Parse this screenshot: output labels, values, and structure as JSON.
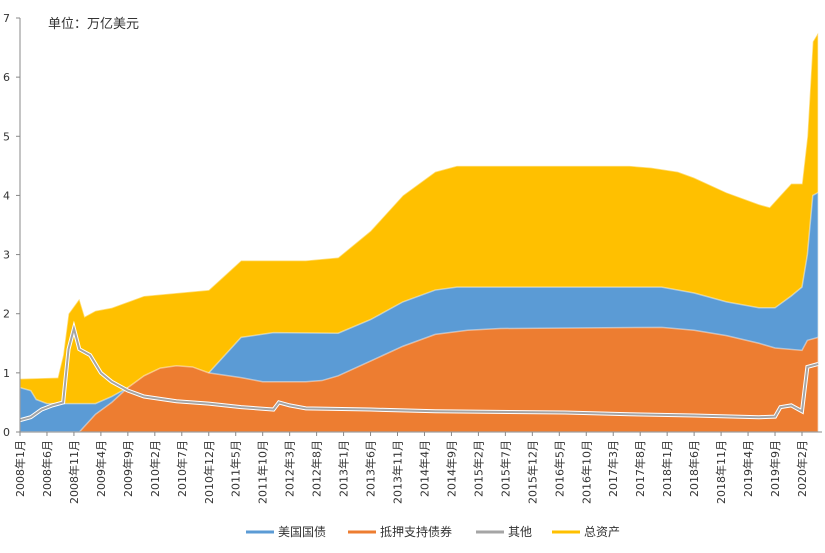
{
  "chart_data": {
    "type": "area",
    "title": "",
    "annotation": "单位：万亿美元",
    "ylim": [
      0,
      7
    ],
    "yticks": [
      0,
      1,
      2,
      3,
      4,
      5,
      6,
      7
    ],
    "xticks": [
      "2008年1月",
      "2008年6月",
      "2008年11月",
      "2009年4月",
      "2009年9月",
      "2010年2月",
      "2010年7月",
      "2010年12月",
      "2011年5月",
      "2011年10月",
      "2012年3月",
      "2012年8月",
      "2013年1月",
      "2013年6月",
      "2013年11月",
      "2014年4月",
      "2014年9月",
      "2015年2月",
      "2015年7月",
      "2015年12月",
      "2016年5月",
      "2016年10月",
      "2017年3月",
      "2017年8月",
      "2018年1月",
      "2018年6月",
      "2018年11月",
      "2019年4月",
      "2019年9月",
      "2020年2月"
    ],
    "grid": false,
    "legend_position": "bottom",
    "series": [
      {
        "name": "总资产",
        "color": "#ffc000",
        "kind": "area",
        "points": [
          [
            "2008-01",
            0.9
          ],
          [
            "2008-08",
            0.92
          ],
          [
            "2008-09",
            1.3
          ],
          [
            "2008-10",
            2.0
          ],
          [
            "2008-12",
            2.25
          ],
          [
            "2009-01",
            1.95
          ],
          [
            "2009-03",
            2.05
          ],
          [
            "2009-06",
            2.1
          ],
          [
            "2009-09",
            2.2
          ],
          [
            "2009-12",
            2.3
          ],
          [
            "2010-06",
            2.35
          ],
          [
            "2010-12",
            2.4
          ],
          [
            "2011-03",
            2.65
          ],
          [
            "2011-06",
            2.9
          ],
          [
            "2011-12",
            2.9
          ],
          [
            "2012-06",
            2.9
          ],
          [
            "2012-12",
            2.95
          ],
          [
            "2013-06",
            3.4
          ],
          [
            "2013-12",
            4.0
          ],
          [
            "2014-06",
            4.4
          ],
          [
            "2014-10",
            4.5
          ],
          [
            "2015-06",
            4.5
          ],
          [
            "2016-06",
            4.5
          ],
          [
            "2017-06",
            4.5
          ],
          [
            "2017-10",
            4.47
          ],
          [
            "2018-03",
            4.4
          ],
          [
            "2018-06",
            4.3
          ],
          [
            "2018-12",
            4.05
          ],
          [
            "2019-06",
            3.85
          ],
          [
            "2019-08",
            3.8
          ],
          [
            "2019-10",
            4.0
          ],
          [
            "2019-12",
            4.2
          ],
          [
            "2020-02",
            4.2
          ],
          [
            "2020-03",
            5.0
          ],
          [
            "2020-04",
            6.6
          ],
          [
            "2020-05",
            6.75
          ]
        ]
      },
      {
        "name": "美国国债",
        "color": "#5b9bd5",
        "kind": "area",
        "points": [
          [
            "2008-01",
            0.75
          ],
          [
            "2008-03",
            0.7
          ],
          [
            "2008-04",
            0.55
          ],
          [
            "2008-06",
            0.48
          ],
          [
            "2009-03",
            0.48
          ],
          [
            "2009-06",
            0.6
          ],
          [
            "2009-09",
            0.75
          ],
          [
            "2010-06",
            0.78
          ],
          [
            "2010-10",
            0.8
          ],
          [
            "2010-12",
            1.0
          ],
          [
            "2011-03",
            1.3
          ],
          [
            "2011-06",
            1.6
          ],
          [
            "2011-12",
            1.68
          ],
          [
            "2012-12",
            1.67
          ],
          [
            "2013-06",
            1.9
          ],
          [
            "2013-12",
            2.2
          ],
          [
            "2014-06",
            2.4
          ],
          [
            "2014-10",
            2.45
          ],
          [
            "2017-12",
            2.45
          ],
          [
            "2018-06",
            2.35
          ],
          [
            "2018-12",
            2.2
          ],
          [
            "2019-06",
            2.1
          ],
          [
            "2019-09",
            2.1
          ],
          [
            "2019-12",
            2.3
          ],
          [
            "2020-02",
            2.45
          ],
          [
            "2020-03",
            3.0
          ],
          [
            "2020-04",
            4.0
          ],
          [
            "2020-05",
            4.05
          ]
        ]
      },
      {
        "name": "抵押支持债券",
        "color": "#ed7d31",
        "kind": "area",
        "points": [
          [
            "2008-01",
            0
          ],
          [
            "2008-12",
            0
          ],
          [
            "2009-03",
            0.3
          ],
          [
            "2009-06",
            0.5
          ],
          [
            "2009-09",
            0.75
          ],
          [
            "2009-12",
            0.95
          ],
          [
            "2010-03",
            1.08
          ],
          [
            "2010-06",
            1.12
          ],
          [
            "2010-09",
            1.1
          ],
          [
            "2010-12",
            1.0
          ],
          [
            "2011-06",
            0.92
          ],
          [
            "2011-10",
            0.85
          ],
          [
            "2012-06",
            0.85
          ],
          [
            "2012-09",
            0.87
          ],
          [
            "2012-12",
            0.95
          ],
          [
            "2013-06",
            1.2
          ],
          [
            "2013-12",
            1.45
          ],
          [
            "2014-06",
            1.65
          ],
          [
            "2014-12",
            1.72
          ],
          [
            "2015-06",
            1.75
          ],
          [
            "2017-12",
            1.77
          ],
          [
            "2018-06",
            1.72
          ],
          [
            "2018-12",
            1.63
          ],
          [
            "2019-06",
            1.5
          ],
          [
            "2019-09",
            1.42
          ],
          [
            "2020-02",
            1.38
          ],
          [
            "2020-03",
            1.55
          ],
          [
            "2020-05",
            1.6
          ]
        ]
      },
      {
        "name": "其他",
        "color": "#a5a5a5",
        "kind": "line",
        "points": [
          [
            "2008-01",
            0.2
          ],
          [
            "2008-03",
            0.25
          ],
          [
            "2008-05",
            0.38
          ],
          [
            "2008-07",
            0.45
          ],
          [
            "2008-09",
            0.5
          ],
          [
            "2008-10",
            1.4
          ],
          [
            "2008-11",
            1.75
          ],
          [
            "2008-12",
            1.4
          ],
          [
            "2009-02",
            1.3
          ],
          [
            "2009-04",
            1.0
          ],
          [
            "2009-06",
            0.85
          ],
          [
            "2009-09",
            0.7
          ],
          [
            "2009-12",
            0.6
          ],
          [
            "2010-06",
            0.52
          ],
          [
            "2010-12",
            0.48
          ],
          [
            "2011-06",
            0.42
          ],
          [
            "2011-12",
            0.38
          ],
          [
            "2012-01",
            0.5
          ],
          [
            "2012-03",
            0.45
          ],
          [
            "2012-06",
            0.4
          ],
          [
            "2013-06",
            0.38
          ],
          [
            "2014-06",
            0.35
          ],
          [
            "2016-06",
            0.33
          ],
          [
            "2017-06",
            0.3
          ],
          [
            "2018-06",
            0.28
          ],
          [
            "2019-06",
            0.25
          ],
          [
            "2019-09",
            0.26
          ],
          [
            "2019-10",
            0.42
          ],
          [
            "2019-12",
            0.45
          ],
          [
            "2020-02",
            0.35
          ],
          [
            "2020-03",
            1.1
          ],
          [
            "2020-05",
            1.15
          ]
        ]
      }
    ],
    "legend_order": [
      "美国国债",
      "抵押支持债券",
      "其他",
      "总资产"
    ]
  }
}
